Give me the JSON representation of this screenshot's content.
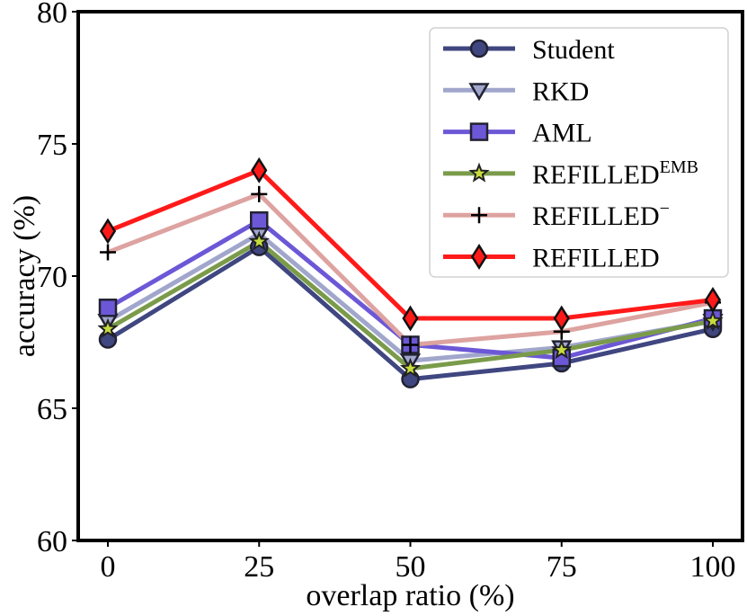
{
  "chart_data": {
    "type": "line",
    "title": "",
    "xlabel": "overlap ratio (%)",
    "ylabel": "accuracy (%)",
    "x": [
      0,
      25,
      50,
      75,
      100
    ],
    "x_tick_labels": [
      "0",
      "25",
      "50",
      "75",
      "100"
    ],
    "ylim": [
      60,
      80
    ],
    "y_ticks": [
      60,
      65,
      70,
      75,
      80
    ],
    "y_tick_labels": [
      "60",
      "65",
      "70",
      "75",
      "80"
    ],
    "grid": false,
    "legend_position": "top-right",
    "series": [
      {
        "name": "Student",
        "name_base": "Student",
        "name_sup": "",
        "values": [
          67.6,
          71.1,
          66.1,
          66.7,
          68.0
        ],
        "line_color": "#3f4680",
        "marker": "circle",
        "marker_fill": "#3f4680",
        "marker_edge": "#222233"
      },
      {
        "name": "RKD",
        "name_base": "RKD",
        "name_sup": "",
        "values": [
          68.3,
          71.6,
          66.8,
          67.3,
          68.3
        ],
        "line_color": "#a1a6cc",
        "marker": "triangle-down",
        "marker_fill": "#a1a6cc",
        "marker_edge": "#222233"
      },
      {
        "name": "AML",
        "name_base": "AML",
        "name_sup": "",
        "values": [
          68.8,
          72.1,
          67.4,
          66.9,
          68.4
        ],
        "line_color": "#6c58d6",
        "marker": "square",
        "marker_fill": "#6c58d6",
        "marker_edge": "#222233"
      },
      {
        "name": "REFILLED^EMB",
        "name_base": "REFILLED",
        "name_sup": "EMB",
        "values": [
          68.0,
          71.3,
          66.5,
          67.2,
          68.3
        ],
        "line_color": "#7a9b4a",
        "marker": "star",
        "marker_fill": "#c6dc3c",
        "marker_edge": "#222222"
      },
      {
        "name": "REFILLED^−",
        "name_base": "REFILLED",
        "name_sup": "−",
        "values": [
          70.9,
          73.1,
          67.4,
          67.9,
          69.0
        ],
        "line_color": "#dda3a0",
        "marker": "plus",
        "marker_fill": "none",
        "marker_edge": "#000000"
      },
      {
        "name": "REFILLED",
        "name_base": "REFILLED",
        "name_sup": "",
        "values": [
          71.7,
          74.0,
          68.4,
          68.4,
          69.1
        ],
        "line_color": "#ff1a1a",
        "marker": "diamond",
        "marker_fill": "#ff1a1a",
        "marker_edge": "#111111"
      }
    ]
  }
}
